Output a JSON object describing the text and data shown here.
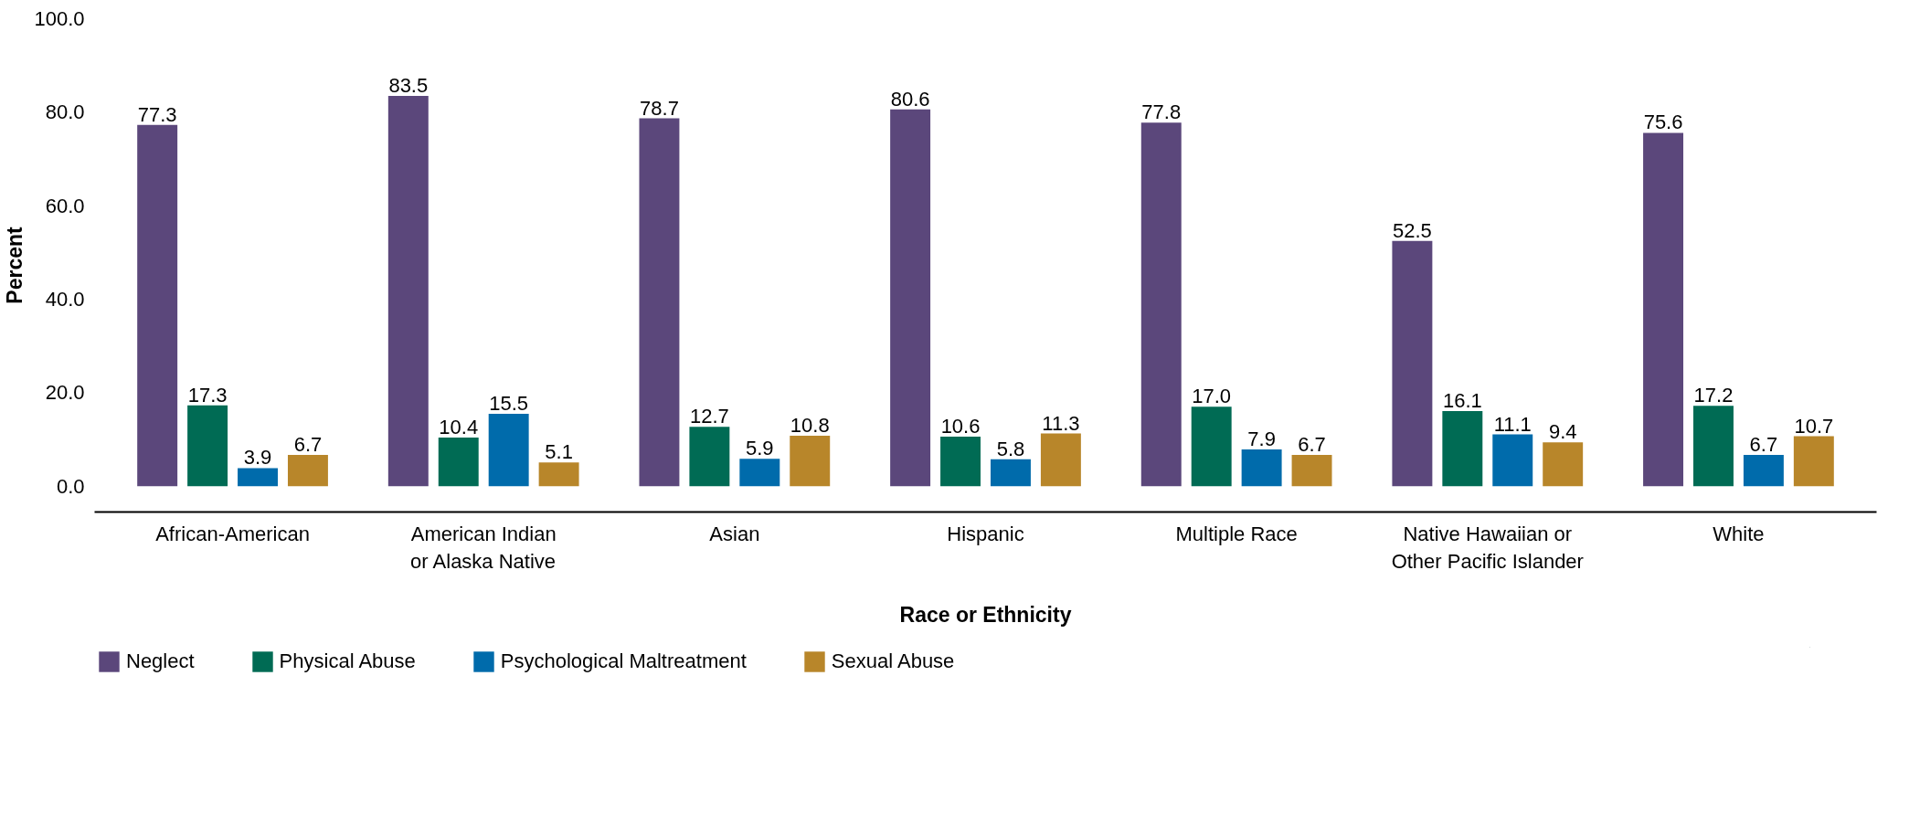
{
  "chart_data": {
    "type": "bar",
    "xlabel": "Race or Ethnicity",
    "ylabel": "Percent",
    "categories": [
      "African-American",
      "American Indian\nor Alaska Native",
      "Asian",
      "Hispanic",
      "Multiple Race",
      "Native Hawaiian or\nOther Pacific Islander",
      "White"
    ],
    "series": [
      {
        "name": "Neglect",
        "color": "#5b477b",
        "values": [
          77.3,
          83.5,
          78.7,
          80.6,
          77.8,
          52.5,
          75.6
        ],
        "value_labels": [
          "77.3",
          "83.5",
          "78.7",
          "80.6",
          "77.8",
          "52.5",
          "75.6"
        ]
      },
      {
        "name": "Physical Abuse",
        "color": "#006b54",
        "values": [
          17.3,
          10.4,
          12.7,
          10.6,
          17.0,
          16.1,
          17.2
        ],
        "value_labels": [
          "17.3",
          "10.4",
          "12.7",
          "10.6",
          "17.0",
          "16.1",
          "17.2"
        ]
      },
      {
        "name": "Psychological Maltreatment",
        "color": "#006bab",
        "values": [
          3.9,
          15.5,
          5.9,
          5.8,
          7.9,
          11.1,
          6.7
        ],
        "value_labels": [
          "3.9",
          "15.5",
          "5.9",
          "5.8",
          "7.9",
          "11.1",
          "6.7"
        ]
      },
      {
        "name": "Sexual Abuse",
        "color": "#b8862a",
        "values": [
          6.7,
          5.1,
          10.8,
          11.3,
          6.7,
          9.4,
          10.7
        ],
        "value_labels": [
          "6.7",
          "5.1",
          "10.8",
          "11.3",
          "6.7",
          "9.4",
          "10.7"
        ]
      }
    ],
    "ylim": [
      -5.5,
      100
    ],
    "yticks": [
      {
        "value": 0,
        "label": "0.0"
      },
      {
        "value": 20,
        "label": "20.0"
      },
      {
        "value": 40,
        "label": "40.0"
      },
      {
        "value": 60,
        "label": "60.0"
      },
      {
        "value": 80,
        "label": "80.0"
      },
      {
        "value": 100,
        "label": "100.0"
      }
    ],
    "grid": false,
    "legend": "bottom"
  }
}
